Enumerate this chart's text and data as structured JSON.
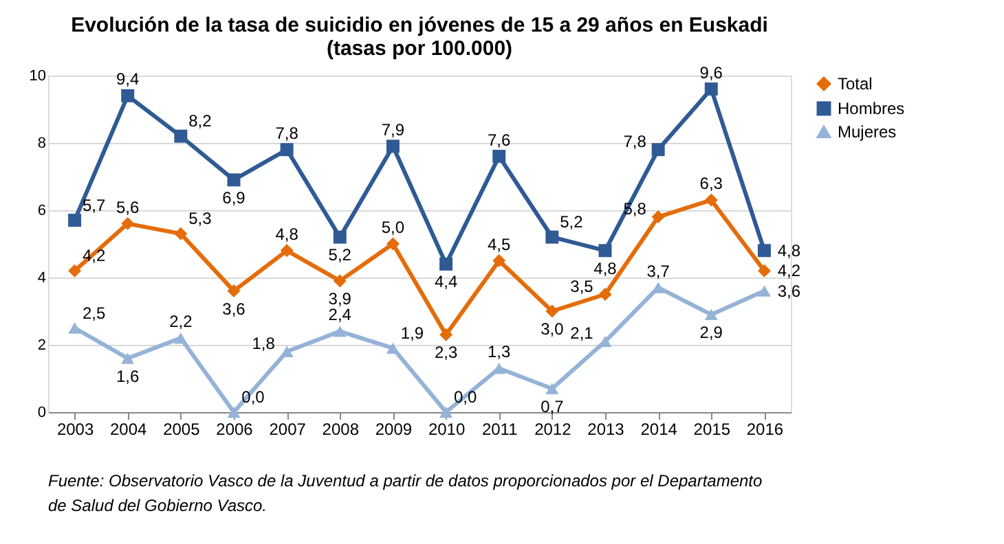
{
  "chart_data": {
    "type": "line",
    "title": [
      "Evolución de la tasa de suicidio en jóvenes de 15 a 29 años en Euskadi",
      "(tasas por 100.000)"
    ],
    "categories": [
      "2003",
      "2004",
      "2005",
      "2006",
      "2007",
      "2008",
      "2009",
      "2010",
      "2011",
      "2012",
      "2013",
      "2014",
      "2015",
      "2016"
    ],
    "ylim": [
      0,
      10
    ],
    "yticks": [
      0,
      2,
      4,
      6,
      8,
      10
    ],
    "grid": "y",
    "legend": "right",
    "line_style": "solid",
    "series": [
      {
        "name": "Total",
        "color": "#e46c0a",
        "marker": "diamond",
        "values": [
          4.2,
          5.6,
          5.3,
          3.6,
          4.8,
          3.9,
          5.0,
          2.3,
          4.5,
          3.0,
          3.5,
          5.8,
          6.3,
          4.2
        ],
        "value_labels": [
          "4,2",
          "5,6",
          "5,3",
          "3,6",
          "4,8",
          "3,9",
          "5,0",
          "2,3",
          "4,5",
          "3,0",
          "3,5",
          "5,8",
          "6,3",
          "4,2"
        ]
      },
      {
        "name": "Hombres",
        "color": "#2f5a94",
        "marker": "square",
        "values": [
          5.7,
          9.4,
          8.2,
          6.9,
          7.8,
          5.2,
          7.9,
          4.4,
          7.6,
          5.2,
          4.8,
          7.8,
          9.6,
          4.8
        ],
        "value_labels": [
          "5,7",
          "9,4",
          "8,2",
          "6,9",
          "7,8",
          "5,2",
          "7,9",
          "4,4",
          "7,6",
          "5,2",
          "4,8",
          "7,8",
          "9,6",
          "4,8"
        ]
      },
      {
        "name": "Mujeres",
        "color": "#95b3d7",
        "marker": "triangle",
        "values": [
          2.5,
          1.6,
          2.2,
          0.0,
          1.8,
          2.4,
          1.9,
          0.0,
          1.3,
          0.7,
          2.1,
          3.7,
          2.9,
          3.6
        ],
        "value_labels": [
          "2,5",
          "1,6",
          "2,2",
          "0,0",
          "1,8",
          "2,4",
          "1,9",
          "0,0",
          "1,3",
          "0,7",
          "2,1",
          "3,7",
          "2,9",
          "3,6"
        ]
      }
    ],
    "annotations": [
      "Fuente: Observatorio Vasco de la Juventud a partir de datos proporcionados por el Departamento de Salud del Gobierno Vasco."
    ]
  }
}
